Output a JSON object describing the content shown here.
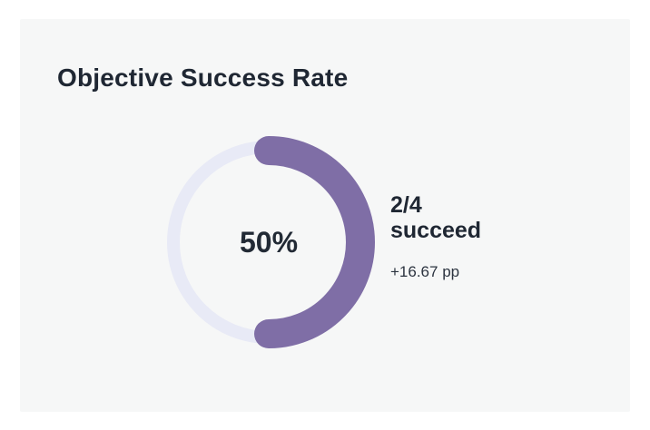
{
  "card": {
    "title": "Objective Success Rate"
  },
  "gauge": {
    "value_label": "50%",
    "fraction": 0.5,
    "track_color": "#e8eaf6",
    "fill_color": "#7f6ea6"
  },
  "stats": {
    "ratio": "2/4",
    "ratio_label": "succeed",
    "delta": "+16.67 pp"
  }
}
